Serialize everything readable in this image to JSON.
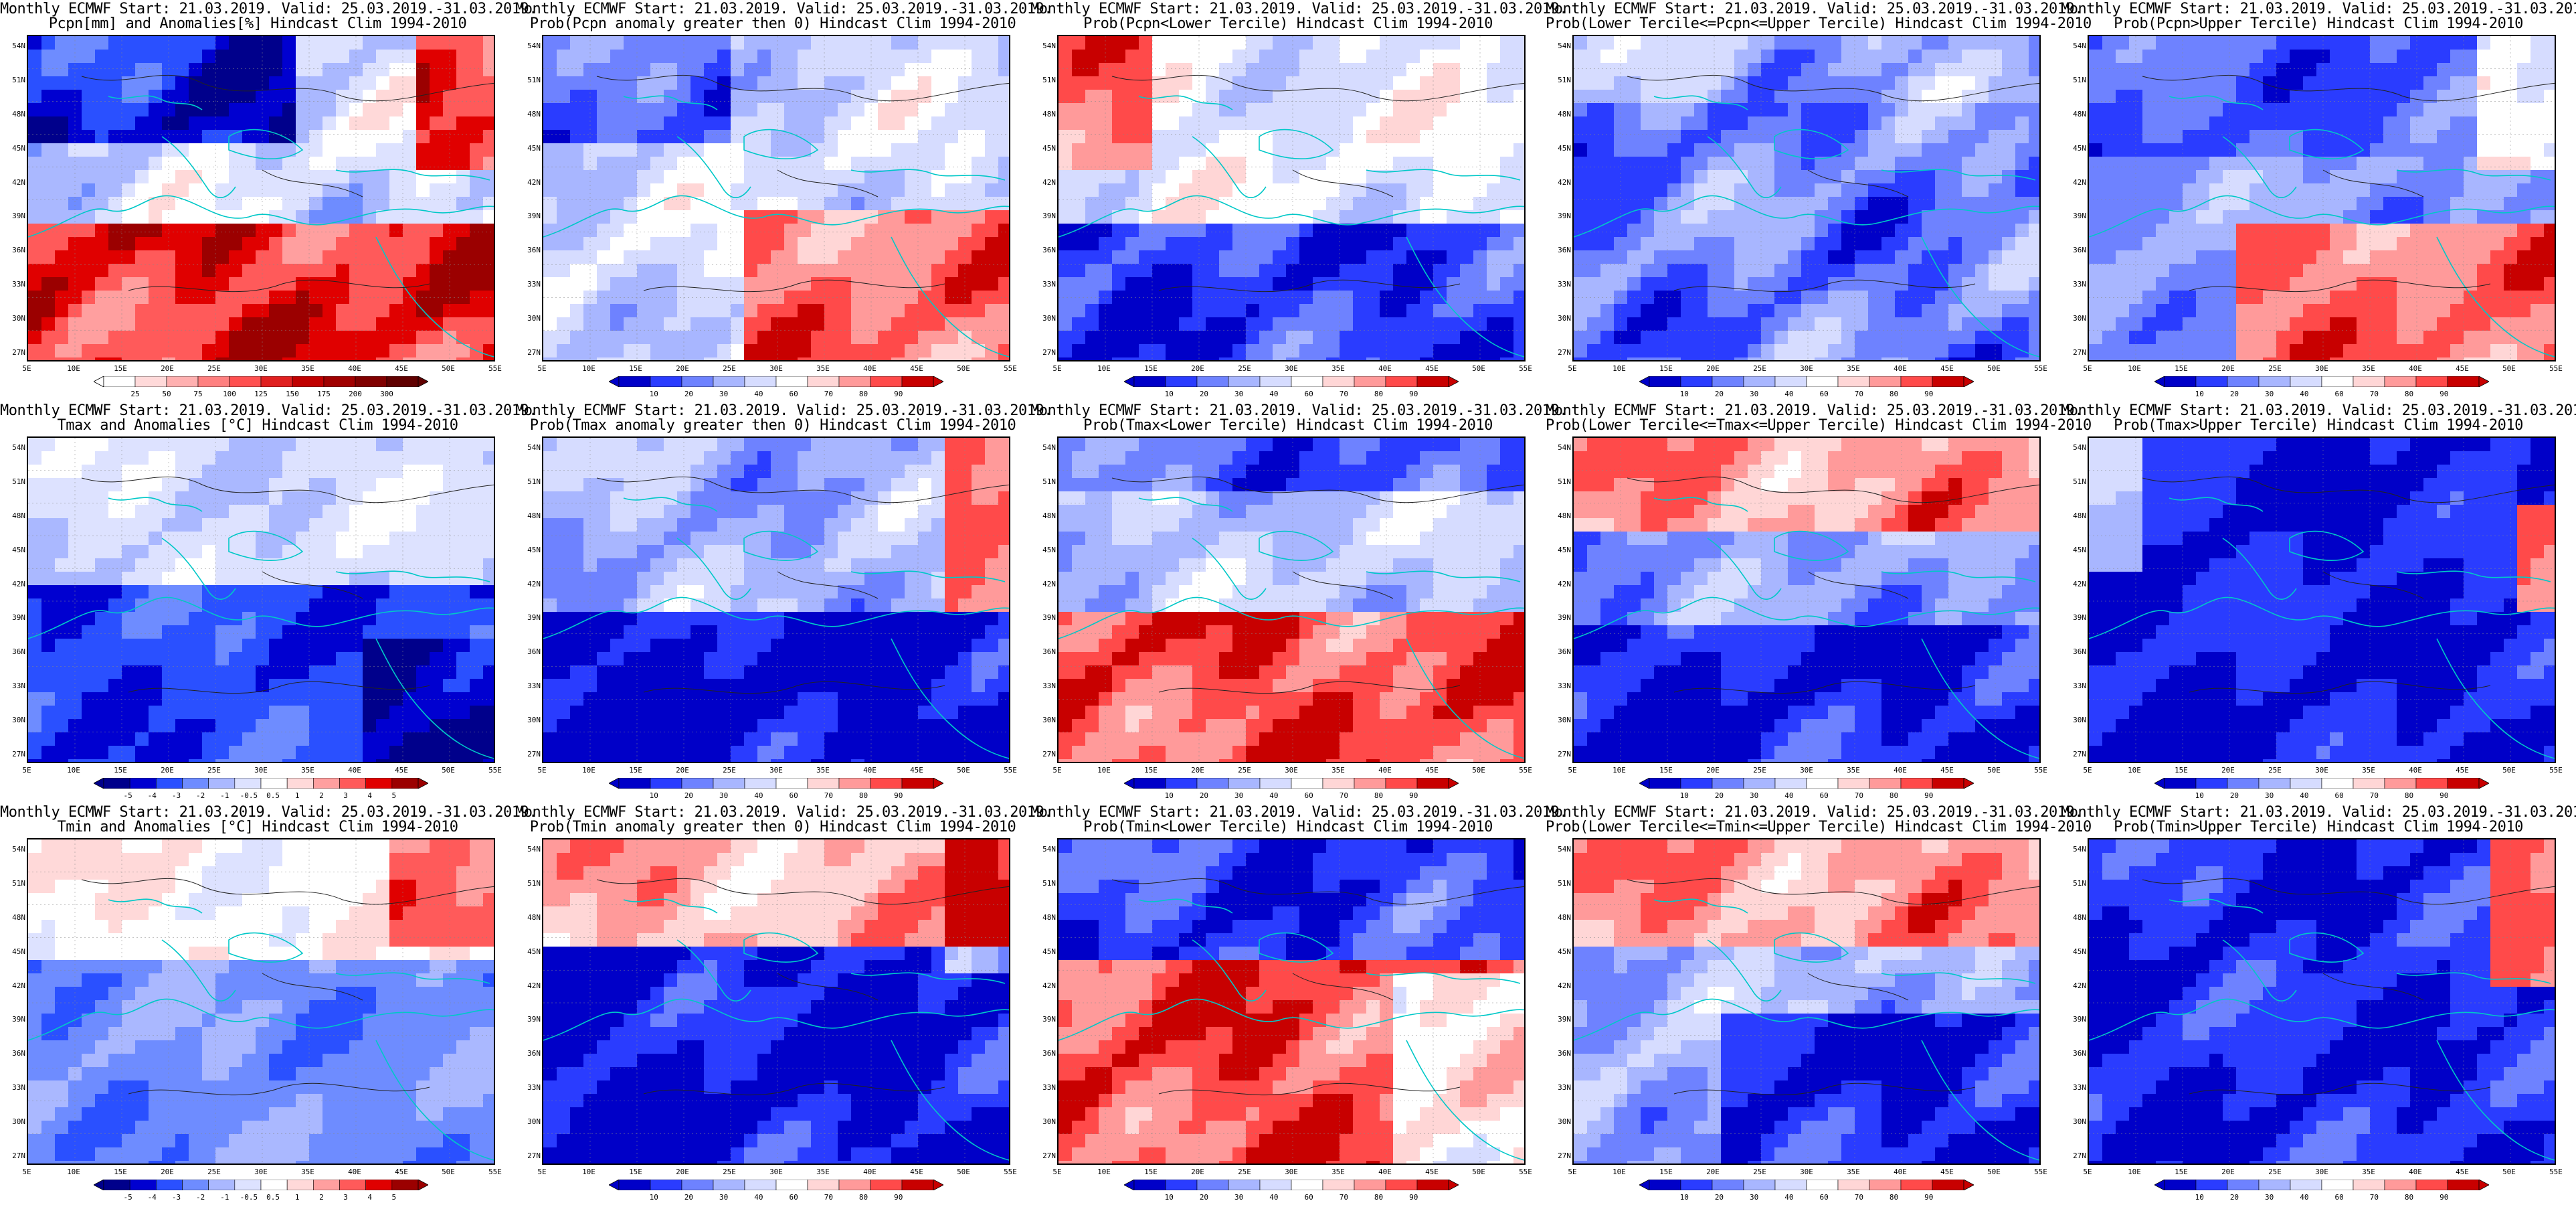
{
  "header_prefix": "Monthly ECMWF Start: 21.03.2019. Valid: 25.03.2019.-31.03.2019.",
  "lat_labels": [
    "54N",
    "51N",
    "48N",
    "45N",
    "42N",
    "39N",
    "36N",
    "33N",
    "30N",
    "27N"
  ],
  "lon_labels": [
    "5E",
    "10E",
    "15E",
    "20E",
    "25E",
    "30E",
    "35E",
    "40E",
    "45E",
    "50E",
    "55E"
  ],
  "colorbars": {
    "pcpn_anom": [
      "25",
      "50",
      "75",
      "100",
      "125",
      "150",
      "175",
      "200",
      "300"
    ],
    "temp_anom": [
      "-5",
      "-4",
      "-3",
      "-2",
      "-1",
      "-0.5",
      "0.5",
      "1",
      "2",
      "3",
      "4",
      "5"
    ],
    "prob": [
      "10",
      "20",
      "30",
      "40",
      "60",
      "70",
      "80",
      "90"
    ]
  },
  "scheme": {
    "dry": "#b30000",
    "wet": "#00008b",
    "warm": "#b30000",
    "cold": "#00008b",
    "coast": "#00c8c8",
    "contour": "#222222"
  },
  "panels": [
    {
      "title": "Pcpn[mm] and Anomalies[%] Hindcast Clim 1994-2010",
      "field": "pcpn_anom",
      "bar": "pcpn_anom"
    },
    {
      "title": "Prob(Pcpn anomaly greater then 0) Hindcast Clim 1994-2010",
      "field": "pcpn_pos",
      "bar": "prob"
    },
    {
      "title": "Prob(Pcpn<Lower Tercile) Hindcast Clim 1994-2010",
      "field": "pcpn_low",
      "bar": "prob"
    },
    {
      "title": "Prob(Lower Tercile<=Pcpn<=Upper Tercile) Hindcast Clim 1994-2010",
      "field": "pcpn_mid",
      "bar": "prob"
    },
    {
      "title": "Prob(Pcpn>Upper Tercile) Hindcast Clim 1994-2010",
      "field": "pcpn_up",
      "bar": "prob"
    },
    {
      "title": "Tmax and Anomalies [°C] Hindcast Clim 1994-2010",
      "field": "tmax_anom",
      "bar": "temp_anom"
    },
    {
      "title": "Prob(Tmax anomaly greater then 0) Hindcast Clim 1994-2010",
      "field": "tmax_pos",
      "bar": "prob"
    },
    {
      "title": "Prob(Tmax<Lower Tercile) Hindcast Clim 1994-2010",
      "field": "tmax_low",
      "bar": "prob"
    },
    {
      "title": "Prob(Lower Tercile<=Tmax<=Upper Tercile) Hindcast Clim 1994-2010",
      "field": "tmax_mid",
      "bar": "prob"
    },
    {
      "title": "Prob(Tmax>Upper Tercile) Hindcast Clim 1994-2010",
      "field": "tmax_up",
      "bar": "prob"
    },
    {
      "title": "Tmin and Anomalies [°C] Hindcast Clim 1994-2010",
      "field": "tmin_anom",
      "bar": "temp_anom"
    },
    {
      "title": "Prob(Tmin anomaly greater then 0) Hindcast Clim 1994-2010",
      "field": "tmin_pos",
      "bar": "prob"
    },
    {
      "title": "Prob(Tmin<Lower Tercile) Hindcast Clim 1994-2010",
      "field": "tmin_low",
      "bar": "prob"
    },
    {
      "title": "Prob(Lower Tercile<=Tmin<=Upper Tercile) Hindcast Clim 1994-2010",
      "field": "tmin_mid",
      "bar": "prob"
    },
    {
      "title": "Prob(Tmin>Upper Tercile) Hindcast Clim 1994-2010",
      "field": "tmin_up",
      "bar": "prob"
    }
  ]
}
